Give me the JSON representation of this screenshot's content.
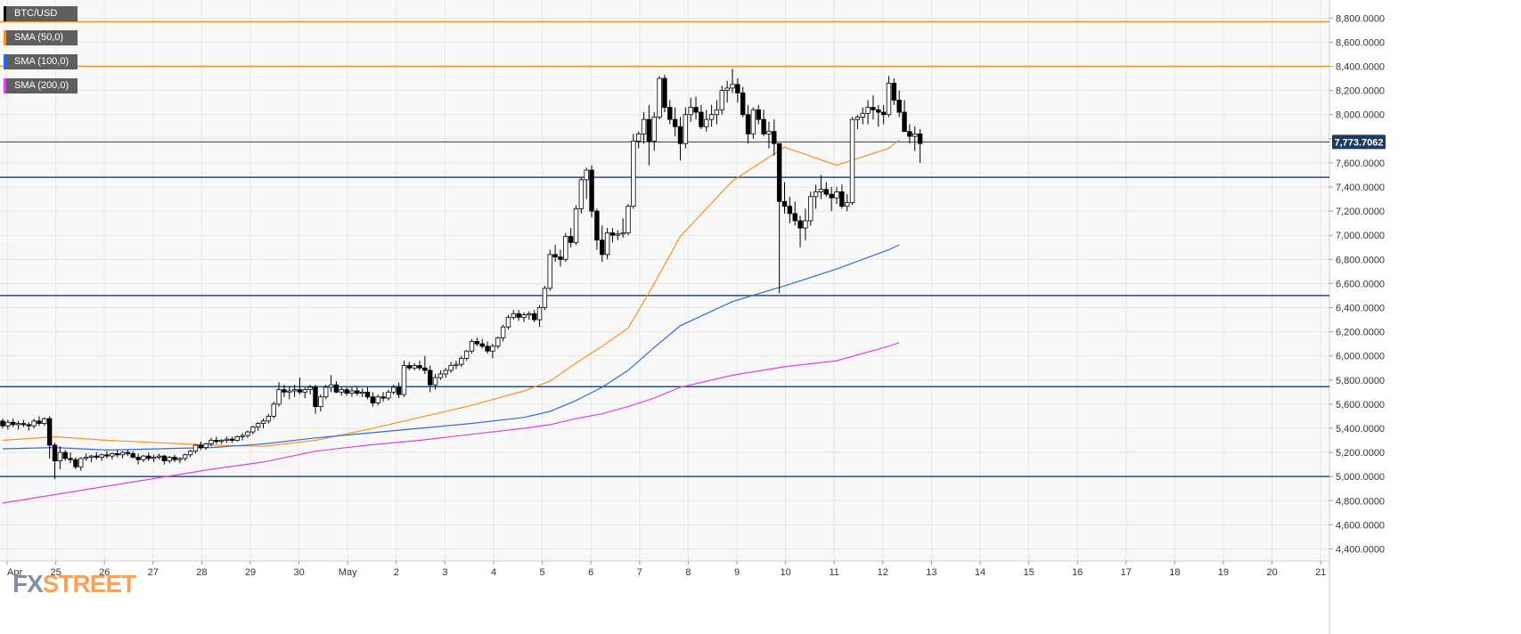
{
  "legend": [
    {
      "label": "BTC/USD",
      "color": "#000000"
    },
    {
      "label": "SMA (50,0)",
      "color": "#f7931e"
    },
    {
      "label": "SMA (100,0)",
      "color": "#2962ff"
    },
    {
      "label": "SMA (200,0)",
      "color": "#e040fb"
    }
  ],
  "watermark": {
    "fx": "FX",
    "street": "STREET"
  },
  "colors": {
    "resistance": "#f7931e",
    "support": "#1f4e8c",
    "sma50": "#f7931e",
    "sma100": "#2f6bd8",
    "sma200": "#e23fe6",
    "candle_up_fill": "#ffffff",
    "candle_down_fill": "#000000",
    "grid": "#e6e6e6",
    "price_tag": "#1f3a5f"
  },
  "chart_data": {
    "type": "candlestick",
    "title": "BTC/USD",
    "xlabel": "",
    "ylabel": "",
    "ylim": [
      4300,
      8950
    ],
    "grid": true,
    "legend_position": "top-left",
    "x_tick_labels": [
      "Apr",
      "25",
      "26",
      "27",
      "28",
      "29",
      "30",
      "May",
      "2",
      "3",
      "4",
      "5",
      "6",
      "7",
      "8",
      "9",
      "10",
      "11",
      "12",
      "13",
      "14",
      "15",
      "16",
      "17",
      "18",
      "19",
      "20",
      "21"
    ],
    "y_ticks": [
      4400,
      4600,
      4800,
      5000,
      5200,
      5400,
      5600,
      5800,
      6000,
      6200,
      6400,
      6600,
      6800,
      7000,
      7200,
      7400,
      7600,
      7800,
      8000,
      8200,
      8400,
      8600,
      8800
    ],
    "y_tick_labels": [
      "4,400.0000",
      "4,600.0000",
      "4,800.0000",
      "5,000.0000",
      "5,200.0000",
      "5,400.0000",
      "5,600.0000",
      "5,800.0000",
      "6,000.0000",
      "6,200.0000",
      "6,400.0000",
      "6,600.0000",
      "6,800.0000",
      "7,000.0000",
      "7,200.0000",
      "7,400.0000",
      "7,600.0000",
      "7,800.0000",
      "8,000.0000",
      "8,200.0000",
      "8,400.0000",
      "8,600.0000",
      "8,800.0000"
    ],
    "current_price": "7,773.7062",
    "current_price_value": 7773.7,
    "horizontal_levels": [
      {
        "value": 8770,
        "kind": "resistance"
      },
      {
        "value": 8400,
        "kind": "resistance"
      },
      {
        "value": 7480,
        "kind": "support"
      },
      {
        "value": 6500,
        "kind": "support"
      },
      {
        "value": 5745,
        "kind": "support"
      },
      {
        "value": 5000,
        "kind": "support"
      }
    ],
    "candles_interval": "4h",
    "candles": [
      [
        5460,
        5480,
        5400,
        5420
      ],
      [
        5420,
        5470,
        5390,
        5450
      ],
      [
        5450,
        5480,
        5410,
        5430
      ],
      [
        5430,
        5460,
        5390,
        5440
      ],
      [
        5440,
        5470,
        5410,
        5430
      ],
      [
        5430,
        5450,
        5380,
        5420
      ],
      [
        5420,
        5480,
        5400,
        5460
      ],
      [
        5460,
        5500,
        5420,
        5440
      ],
      [
        5440,
        5490,
        5420,
        5480
      ],
      [
        5480,
        5500,
        5150,
        5260
      ],
      [
        5260,
        5280,
        4980,
        5130
      ],
      [
        5130,
        5250,
        5060,
        5200
      ],
      [
        5200,
        5220,
        5130,
        5150
      ],
      [
        5150,
        5200,
        5110,
        5140
      ],
      [
        5140,
        5160,
        5060,
        5080
      ],
      [
        5080,
        5160,
        5050,
        5150
      ],
      [
        5150,
        5190,
        5130,
        5160
      ],
      [
        5160,
        5180,
        5120,
        5170
      ],
      [
        5170,
        5200,
        5140,
        5160
      ],
      [
        5160,
        5190,
        5130,
        5180
      ],
      [
        5180,
        5210,
        5150,
        5170
      ],
      [
        5170,
        5200,
        5140,
        5190
      ],
      [
        5190,
        5220,
        5160,
        5180
      ],
      [
        5180,
        5210,
        5150,
        5200
      ],
      [
        5200,
        5220,
        5170,
        5190
      ],
      [
        5190,
        5210,
        5150,
        5160
      ],
      [
        5160,
        5190,
        5100,
        5140
      ],
      [
        5140,
        5180,
        5120,
        5170
      ],
      [
        5170,
        5200,
        5130,
        5150
      ],
      [
        5150,
        5180,
        5120,
        5160
      ],
      [
        5160,
        5190,
        5140,
        5170
      ],
      [
        5170,
        5180,
        5100,
        5130
      ],
      [
        5130,
        5170,
        5110,
        5160
      ],
      [
        5160,
        5180,
        5120,
        5140
      ],
      [
        5140,
        5160,
        5110,
        5150
      ],
      [
        5150,
        5190,
        5130,
        5180
      ],
      [
        5180,
        5220,
        5160,
        5210
      ],
      [
        5210,
        5270,
        5190,
        5260
      ],
      [
        5260,
        5290,
        5220,
        5240
      ],
      [
        5240,
        5280,
        5220,
        5270
      ],
      [
        5270,
        5320,
        5250,
        5300
      ],
      [
        5300,
        5330,
        5270,
        5290
      ],
      [
        5290,
        5310,
        5270,
        5300
      ],
      [
        5300,
        5330,
        5280,
        5310
      ],
      [
        5310,
        5330,
        5280,
        5300
      ],
      [
        5300,
        5340,
        5290,
        5330
      ],
      [
        5330,
        5360,
        5300,
        5340
      ],
      [
        5340,
        5380,
        5320,
        5370
      ],
      [
        5370,
        5420,
        5350,
        5410
      ],
      [
        5410,
        5450,
        5380,
        5440
      ],
      [
        5440,
        5480,
        5400,
        5460
      ],
      [
        5460,
        5520,
        5440,
        5500
      ],
      [
        5500,
        5620,
        5480,
        5600
      ],
      [
        5600,
        5780,
        5580,
        5720
      ],
      [
        5720,
        5760,
        5660,
        5700
      ],
      [
        5700,
        5750,
        5640,
        5710
      ],
      [
        5710,
        5760,
        5660,
        5720
      ],
      [
        5720,
        5820,
        5680,
        5700
      ],
      [
        5700,
        5740,
        5650,
        5720
      ],
      [
        5720,
        5760,
        5680,
        5740
      ],
      [
        5740,
        5760,
        5520,
        5580
      ],
      [
        5580,
        5680,
        5540,
        5660
      ],
      [
        5660,
        5760,
        5640,
        5740
      ],
      [
        5740,
        5840,
        5700,
        5760
      ],
      [
        5760,
        5790,
        5690,
        5700
      ],
      [
        5700,
        5740,
        5670,
        5720
      ],
      [
        5720,
        5740,
        5670,
        5690
      ],
      [
        5690,
        5740,
        5660,
        5710
      ],
      [
        5710,
        5750,
        5670,
        5690
      ],
      [
        5690,
        5730,
        5660,
        5700
      ],
      [
        5700,
        5740,
        5640,
        5660
      ],
      [
        5660,
        5700,
        5580,
        5610
      ],
      [
        5610,
        5680,
        5590,
        5660
      ],
      [
        5660,
        5700,
        5620,
        5650
      ],
      [
        5650,
        5720,
        5630,
        5700
      ],
      [
        5700,
        5760,
        5680,
        5740
      ],
      [
        5740,
        5780,
        5650,
        5680
      ],
      [
        5680,
        5960,
        5660,
        5920
      ],
      [
        5920,
        5950,
        5880,
        5900
      ],
      [
        5900,
        5940,
        5880,
        5920
      ],
      [
        5920,
        5960,
        5880,
        5900
      ],
      [
        5900,
        6000,
        5850,
        5880
      ],
      [
        5880,
        5920,
        5700,
        5760
      ],
      [
        5760,
        5850,
        5720,
        5820
      ],
      [
        5820,
        5880,
        5800,
        5850
      ],
      [
        5850,
        5900,
        5820,
        5880
      ],
      [
        5880,
        5950,
        5860,
        5920
      ],
      [
        5920,
        5960,
        5890,
        5930
      ],
      [
        5930,
        6000,
        5910,
        5980
      ],
      [
        5980,
        6050,
        5960,
        6040
      ],
      [
        6040,
        6140,
        6020,
        6120
      ],
      [
        6120,
        6150,
        6080,
        6100
      ],
      [
        6100,
        6140,
        6060,
        6080
      ],
      [
        6080,
        6120,
        6020,
        6040
      ],
      [
        6040,
        6100,
        5980,
        6080
      ],
      [
        6080,
        6160,
        6060,
        6150
      ],
      [
        6150,
        6260,
        6120,
        6240
      ],
      [
        6240,
        6340,
        6220,
        6320
      ],
      [
        6320,
        6380,
        6300,
        6350
      ],
      [
        6350,
        6380,
        6290,
        6320
      ],
      [
        6320,
        6360,
        6280,
        6340
      ],
      [
        6340,
        6370,
        6300,
        6350
      ],
      [
        6350,
        6380,
        6280,
        6300
      ],
      [
        6300,
        6420,
        6240,
        6400
      ],
      [
        6400,
        6580,
        6380,
        6560
      ],
      [
        6560,
        6880,
        6540,
        6840
      ],
      [
        6840,
        6920,
        6780,
        6820
      ],
      [
        6820,
        6880,
        6740,
        6800
      ],
      [
        6800,
        7020,
        6780,
        6990
      ],
      [
        6990,
        7060,
        6900,
        6940
      ],
      [
        6940,
        7250,
        6920,
        7220
      ],
      [
        7220,
        7480,
        7180,
        7460
      ],
      [
        7460,
        7560,
        7300,
        7540
      ],
      [
        7540,
        7580,
        7150,
        7200
      ],
      [
        7200,
        7220,
        6880,
        6960
      ],
      [
        6960,
        7080,
        6780,
        6840
      ],
      [
        6840,
        7060,
        6800,
        7020
      ],
      [
        7020,
        7060,
        6940,
        7000
      ],
      [
        7000,
        7040,
        6960,
        7010
      ],
      [
        7010,
        7140,
        6980,
        7020
      ],
      [
        7020,
        7260,
        7000,
        7240
      ],
      [
        7240,
        7840,
        7220,
        7780
      ],
      [
        7780,
        7860,
        7720,
        7840
      ],
      [
        7840,
        8020,
        7760,
        7960
      ],
      [
        7960,
        8080,
        7580,
        7780
      ],
      [
        7780,
        8020,
        7700,
        7980
      ],
      [
        7980,
        8320,
        7960,
        8300
      ],
      [
        8300,
        8330,
        8020,
        8060
      ],
      [
        8060,
        8120,
        7920,
        7960
      ],
      [
        7960,
        8060,
        7820,
        7900
      ],
      [
        7900,
        7980,
        7620,
        7760
      ],
      [
        7760,
        8060,
        7720,
        8000
      ],
      [
        8000,
        8140,
        7940,
        8060
      ],
      [
        8060,
        8150,
        7960,
        8020
      ],
      [
        8020,
        8080,
        7880,
        7900
      ],
      [
        7900,
        8040,
        7860,
        7960
      ],
      [
        7960,
        8080,
        7900,
        8000
      ],
      [
        8000,
        8120,
        7920,
        8040
      ],
      [
        8040,
        8240,
        8000,
        8200
      ],
      [
        8200,
        8280,
        8100,
        8220
      ],
      [
        8220,
        8380,
        8180,
        8250
      ],
      [
        8250,
        8300,
        8100,
        8180
      ],
      [
        8180,
        8230,
        7980,
        8000
      ],
      [
        8000,
        8080,
        7760,
        7840
      ],
      [
        7840,
        8060,
        7800,
        8040
      ],
      [
        8040,
        8080,
        7920,
        7960
      ],
      [
        7960,
        8040,
        7820,
        7840
      ],
      [
        7840,
        7940,
        7720,
        7860
      ],
      [
        7860,
        7960,
        7660,
        7760
      ],
      [
        7760,
        7760,
        6520,
        7280
      ],
      [
        7280,
        7440,
        7180,
        7240
      ],
      [
        7240,
        7320,
        7100,
        7180
      ],
      [
        7180,
        7280,
        7080,
        7120
      ],
      [
        7120,
        7160,
        6900,
        7060
      ],
      [
        7060,
        7220,
        6960,
        7120
      ],
      [
        7120,
        7360,
        7080,
        7320
      ],
      [
        7320,
        7420,
        7220,
        7360
      ],
      [
        7360,
        7500,
        7300,
        7380
      ],
      [
        7380,
        7440,
        7320,
        7340
      ],
      [
        7340,
        7400,
        7200,
        7310
      ],
      [
        7310,
        7400,
        7260,
        7360
      ],
      [
        7360,
        7420,
        7220,
        7240
      ],
      [
        7240,
        7340,
        7200,
        7270
      ],
      [
        7270,
        7980,
        7250,
        7960
      ],
      [
        7960,
        8000,
        7880,
        7980
      ],
      [
        7980,
        8060,
        7920,
        8010
      ],
      [
        8010,
        8120,
        7920,
        8060
      ],
      [
        8060,
        8160,
        7960,
        8040
      ],
      [
        8040,
        8080,
        7900,
        8020
      ],
      [
        8020,
        8080,
        7920,
        8000
      ],
      [
        8000,
        8320,
        7980,
        8260
      ],
      [
        8260,
        8300,
        8080,
        8120
      ],
      [
        8120,
        8200,
        7980,
        8020
      ],
      [
        8020,
        8120,
        7860,
        7860
      ],
      [
        7860,
        7920,
        7760,
        7820
      ],
      [
        7820,
        7900,
        7700,
        7840
      ],
      [
        7840,
        7880,
        7600,
        7760
      ]
    ],
    "series": [
      {
        "name": "SMA (50,0)",
        "x": [
          0,
          10,
          20,
          30,
          40,
          50,
          60,
          70,
          80,
          90,
          100,
          105,
          110,
          115,
          120,
          125,
          130,
          140,
          150,
          160,
          170,
          172
        ],
        "values": [
          5300,
          5330,
          5300,
          5280,
          5260,
          5250,
          5300,
          5390,
          5490,
          5590,
          5710,
          5790,
          5940,
          6080,
          6230,
          6600,
          6990,
          7450,
          7730,
          7580,
          7720,
          7790
        ]
      },
      {
        "name": "SMA (100,0)",
        "x": [
          0,
          10,
          20,
          30,
          40,
          50,
          60,
          70,
          80,
          90,
          100,
          105,
          110,
          115,
          120,
          125,
          130,
          140,
          150,
          160,
          170,
          172
        ],
        "values": [
          5230,
          5240,
          5220,
          5230,
          5240,
          5270,
          5320,
          5360,
          5400,
          5440,
          5490,
          5540,
          5630,
          5740,
          5880,
          6070,
          6250,
          6450,
          6580,
          6720,
          6880,
          6920
        ]
      },
      {
        "name": "SMA (200,0)",
        "x": [
          0,
          10,
          20,
          30,
          40,
          50,
          60,
          70,
          80,
          90,
          100,
          105,
          110,
          115,
          120,
          125,
          130,
          140,
          150,
          160,
          170,
          172
        ],
        "values": [
          4780,
          4850,
          4920,
          4990,
          5060,
          5120,
          5210,
          5260,
          5300,
          5350,
          5400,
          5430,
          5480,
          5520,
          5580,
          5650,
          5740,
          5840,
          5910,
          5960,
          6080,
          6110
        ]
      }
    ]
  }
}
